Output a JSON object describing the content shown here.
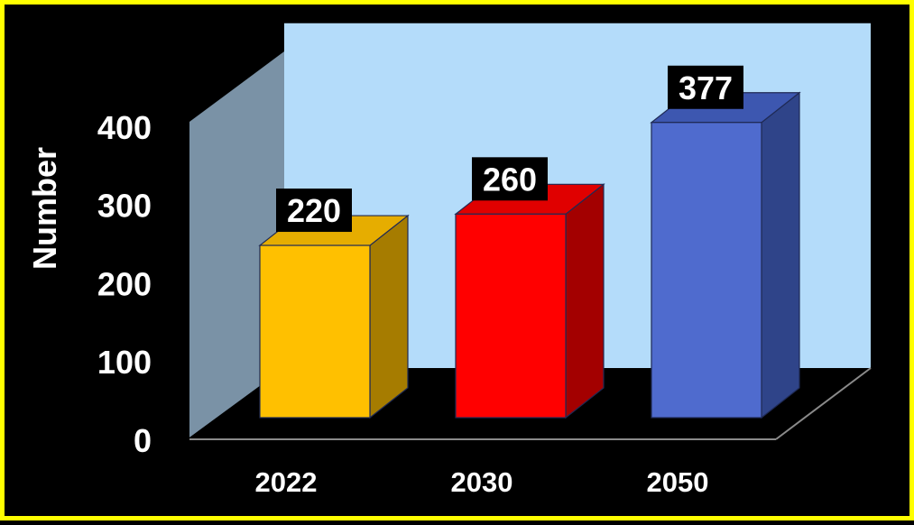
{
  "chart_data": {
    "type": "bar",
    "categories": [
      "2022",
      "2030",
      "2050"
    ],
    "values": [
      220,
      260,
      377
    ],
    "data_labels": [
      "220",
      "260",
      "377"
    ],
    "title": "",
    "xlabel": "",
    "ylabel": "Number",
    "ylim": [
      0,
      400
    ],
    "yticks": [
      "0",
      "100",
      "200",
      "300",
      "400"
    ],
    "grid": false,
    "legend": "none",
    "style": "3d-column",
    "colors": {
      "bars": [
        {
          "front": "#ffc000",
          "side": "#a67c00",
          "top": "#e6ad00"
        },
        {
          "front": "#ff0000",
          "side": "#a30000",
          "top": "#e00000"
        },
        {
          "front": "#4f6bce",
          "side": "#2f4489",
          "top": "#3d57b0"
        }
      ],
      "back_wall": "#b4dcfa",
      "side_wall": "#7a92a6",
      "floor": "#000000",
      "border": "#ffff00",
      "background": "#000000",
      "axis_text": "#ffffff",
      "label_bg": "#000000",
      "label_text": "#ffffff"
    }
  }
}
